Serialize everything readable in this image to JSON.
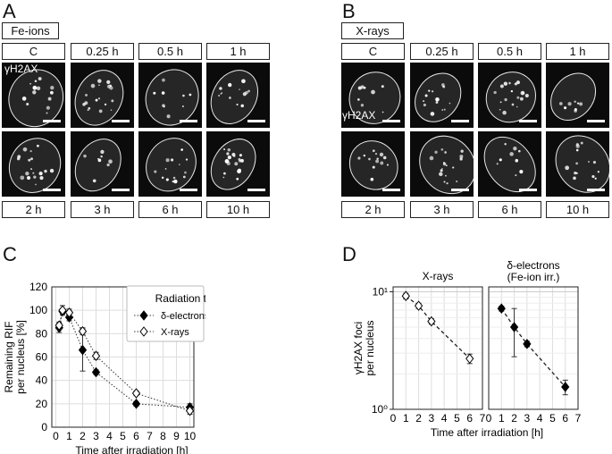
{
  "panels": {
    "A": {
      "letter": "A",
      "label": "Fe-ions",
      "stain": "γH2AX",
      "top_times": [
        "C",
        "0.25 h",
        "0.5 h",
        "1 h"
      ],
      "bottom_times": [
        "2 h",
        "3 h",
        "6 h",
        "10 h"
      ]
    },
    "B": {
      "letter": "B",
      "label": "X-rays",
      "stain": "γH2AX",
      "top_times": [
        "C",
        "0.25 h",
        "0.5 h",
        "1 h"
      ],
      "bottom_times": [
        "2 h",
        "3 h",
        "6 h",
        "10 h"
      ]
    },
    "C": {
      "letter": "C"
    },
    "D": {
      "letter": "D"
    }
  },
  "chart_data": [
    {
      "panel": "C",
      "type": "line",
      "xlabel": "Time after irradiation [h]",
      "ylabel_lines": [
        "Remaining RIF",
        "per nucleus [%]"
      ],
      "xlim": [
        -0.3,
        10.3
      ],
      "ylim": [
        0,
        120
      ],
      "xticks": [
        0,
        1,
        2,
        3,
        4,
        5,
        6,
        7,
        8,
        9,
        10
      ],
      "yticks": [
        0,
        20,
        40,
        60,
        80,
        100,
        120
      ],
      "grid": true,
      "legend": {
        "title": "Radiation type",
        "position": "top-right"
      },
      "series": [
        {
          "name": "δ-electrons (Fe-ion irr.)",
          "marker": "filled-diamond",
          "color": "#000000",
          "x": [
            0.25,
            0.5,
            1,
            2,
            3,
            6,
            10
          ],
          "y": [
            85,
            99,
            94,
            66,
            47,
            20,
            17
          ],
          "err": [
            4,
            2,
            3,
            18,
            2,
            2,
            3
          ]
        },
        {
          "name": "X-rays",
          "marker": "open-diamond",
          "color": "#000000",
          "x": [
            0.25,
            0.5,
            1,
            2,
            3,
            6,
            10
          ],
          "y": [
            87,
            100,
            98,
            82,
            61,
            29,
            14
          ],
          "err": [
            3,
            4,
            3,
            3,
            3,
            2,
            3
          ]
        }
      ]
    },
    {
      "panel": "D",
      "type": "line",
      "ylabel_lines": [
        "γH2AX foci",
        "per nucleus"
      ],
      "xlabel": "Time after irradiation [h]",
      "ylog": true,
      "ylim": [
        1,
        11
      ],
      "yticks_labels": [
        "10⁰",
        "10¹"
      ],
      "subplots": [
        {
          "title_lines": [
            "X-rays"
          ],
          "xticks": [
            0,
            1,
            2,
            3,
            4,
            5,
            6,
            7
          ],
          "xlim": [
            0,
            7
          ],
          "marker": "open-diamond",
          "x": [
            1,
            2,
            3,
            6
          ],
          "y": [
            9.2,
            7.6,
            5.6,
            2.7
          ],
          "err": [
            0.5,
            0.4,
            0.3,
            0.25
          ]
        },
        {
          "title_lines": [
            "δ-electrons",
            "(Fe-ion irr.)"
          ],
          "xticks": [
            0,
            1,
            2,
            3,
            4,
            5,
            6,
            7
          ],
          "xlim": [
            0,
            7
          ],
          "marker": "filled-diamond",
          "x": [
            1,
            2,
            3,
            6
          ],
          "y": [
            7.2,
            5.0,
            3.6,
            1.55
          ],
          "err": [
            0.35,
            2.2,
            0.2,
            0.22
          ]
        }
      ]
    }
  ]
}
